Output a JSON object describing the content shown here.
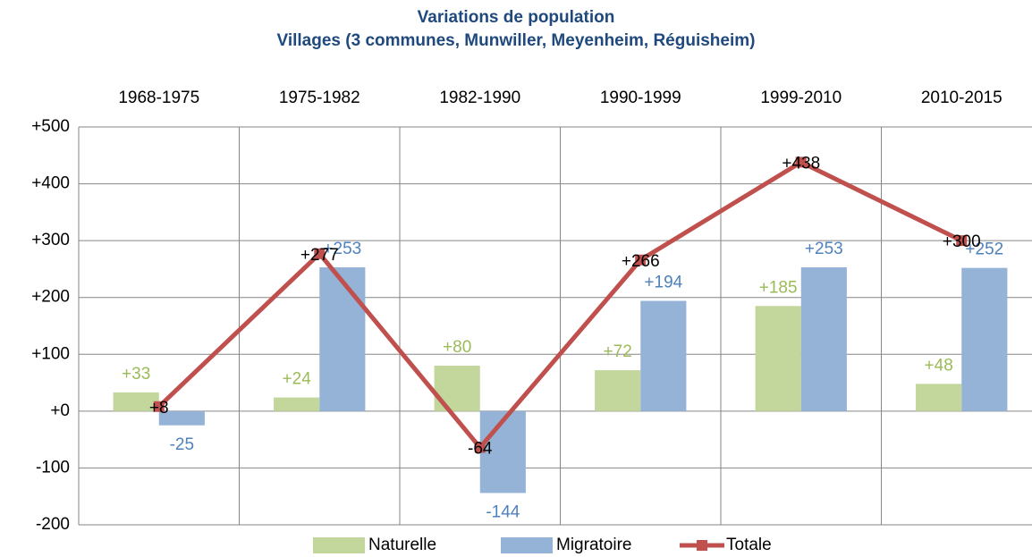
{
  "chart_data": {
    "type": "bar",
    "title": "Variations de population",
    "subtitle": "Villages (3 communes, Munwiller, Meyenheim, Réguisheim)",
    "categories": [
      "1968-1975",
      "1975-1982",
      "1982-1990",
      "1990-1999",
      "1999-2010",
      "2010-2015"
    ],
    "series": [
      {
        "name": "Naturelle",
        "type": "bar",
        "color": "#c3d69b",
        "label_color": "#9bbb59",
        "values": [
          33,
          24,
          80,
          72,
          185,
          48
        ],
        "value_labels": [
          "+33",
          "+24",
          "+80",
          "+72",
          "+185",
          "+48"
        ]
      },
      {
        "name": "Migratoire",
        "type": "bar",
        "color": "#95b3d7",
        "label_color": "#4f81bd",
        "values": [
          -25,
          253,
          -144,
          194,
          253,
          252
        ],
        "value_labels": [
          "-25",
          "+253",
          "-144",
          "+194",
          "+253",
          "+252"
        ]
      },
      {
        "name": "Totale",
        "type": "line",
        "color": "#c0504d",
        "label_color": "#000000",
        "values": [
          8,
          277,
          -64,
          266,
          438,
          300
        ],
        "value_labels": [
          "+8",
          "+277",
          "-64",
          "+266",
          "+438",
          "+300"
        ]
      }
    ],
    "ylim": [
      -200,
      500
    ],
    "yticks": [
      {
        "value": -200,
        "label": "-200"
      },
      {
        "value": -100,
        "label": "-100"
      },
      {
        "value": 0,
        "label": "+0"
      },
      {
        "value": 100,
        "label": "+100"
      },
      {
        "value": 200,
        "label": "+200"
      },
      {
        "value": 300,
        "label": "+300"
      },
      {
        "value": 400,
        "label": "+400"
      },
      {
        "value": 500,
        "label": "+500"
      }
    ],
    "grid": true,
    "legend": "bottom"
  }
}
